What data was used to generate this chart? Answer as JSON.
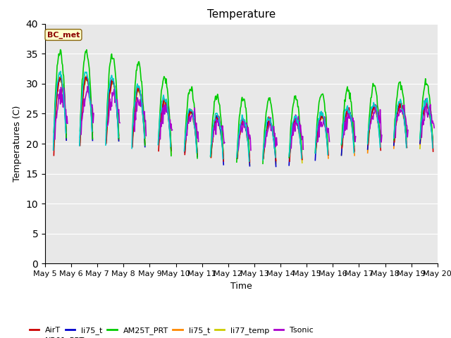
{
  "title": "Temperature",
  "ylabel": "Temperatures (C)",
  "xlabel": "Time",
  "annotation": "BC_met",
  "ylim": [
    0,
    40
  ],
  "yticks": [
    0,
    5,
    10,
    15,
    20,
    25,
    30,
    35,
    40
  ],
  "series": {
    "AirT": {
      "color": "#cc0000",
      "lw": 1.2,
      "zorder": 6
    },
    "li75_t": {
      "color": "#0000cc",
      "lw": 1.2,
      "zorder": 5
    },
    "AM25T_PRT": {
      "color": "#00cc00",
      "lw": 1.2,
      "zorder": 7
    },
    "li75_t2": {
      "color": "#ff8800",
      "lw": 1.2,
      "zorder": 4
    },
    "li77_temp": {
      "color": "#cccc00",
      "lw": 1.2,
      "zorder": 3
    },
    "Tsonic": {
      "color": "#aa00cc",
      "lw": 1.2,
      "zorder": 8
    },
    "NR01_PRT": {
      "color": "#00cccc",
      "lw": 1.2,
      "zorder": 9
    }
  },
  "bg_color": "#e8e8e8",
  "fig_bg": "#ffffff",
  "x_tick_labels": [
    "May 5",
    "May 6",
    "May 7",
    "May 8",
    "May 9",
    "May 10",
    "May 11",
    "May 12",
    "May 13",
    "May 14",
    "May 15",
    "May 16",
    "May 17",
    "May 18",
    "May 19",
    "May 20"
  ],
  "title_fontsize": 11,
  "label_fontsize": 9,
  "tick_fontsize": 8
}
